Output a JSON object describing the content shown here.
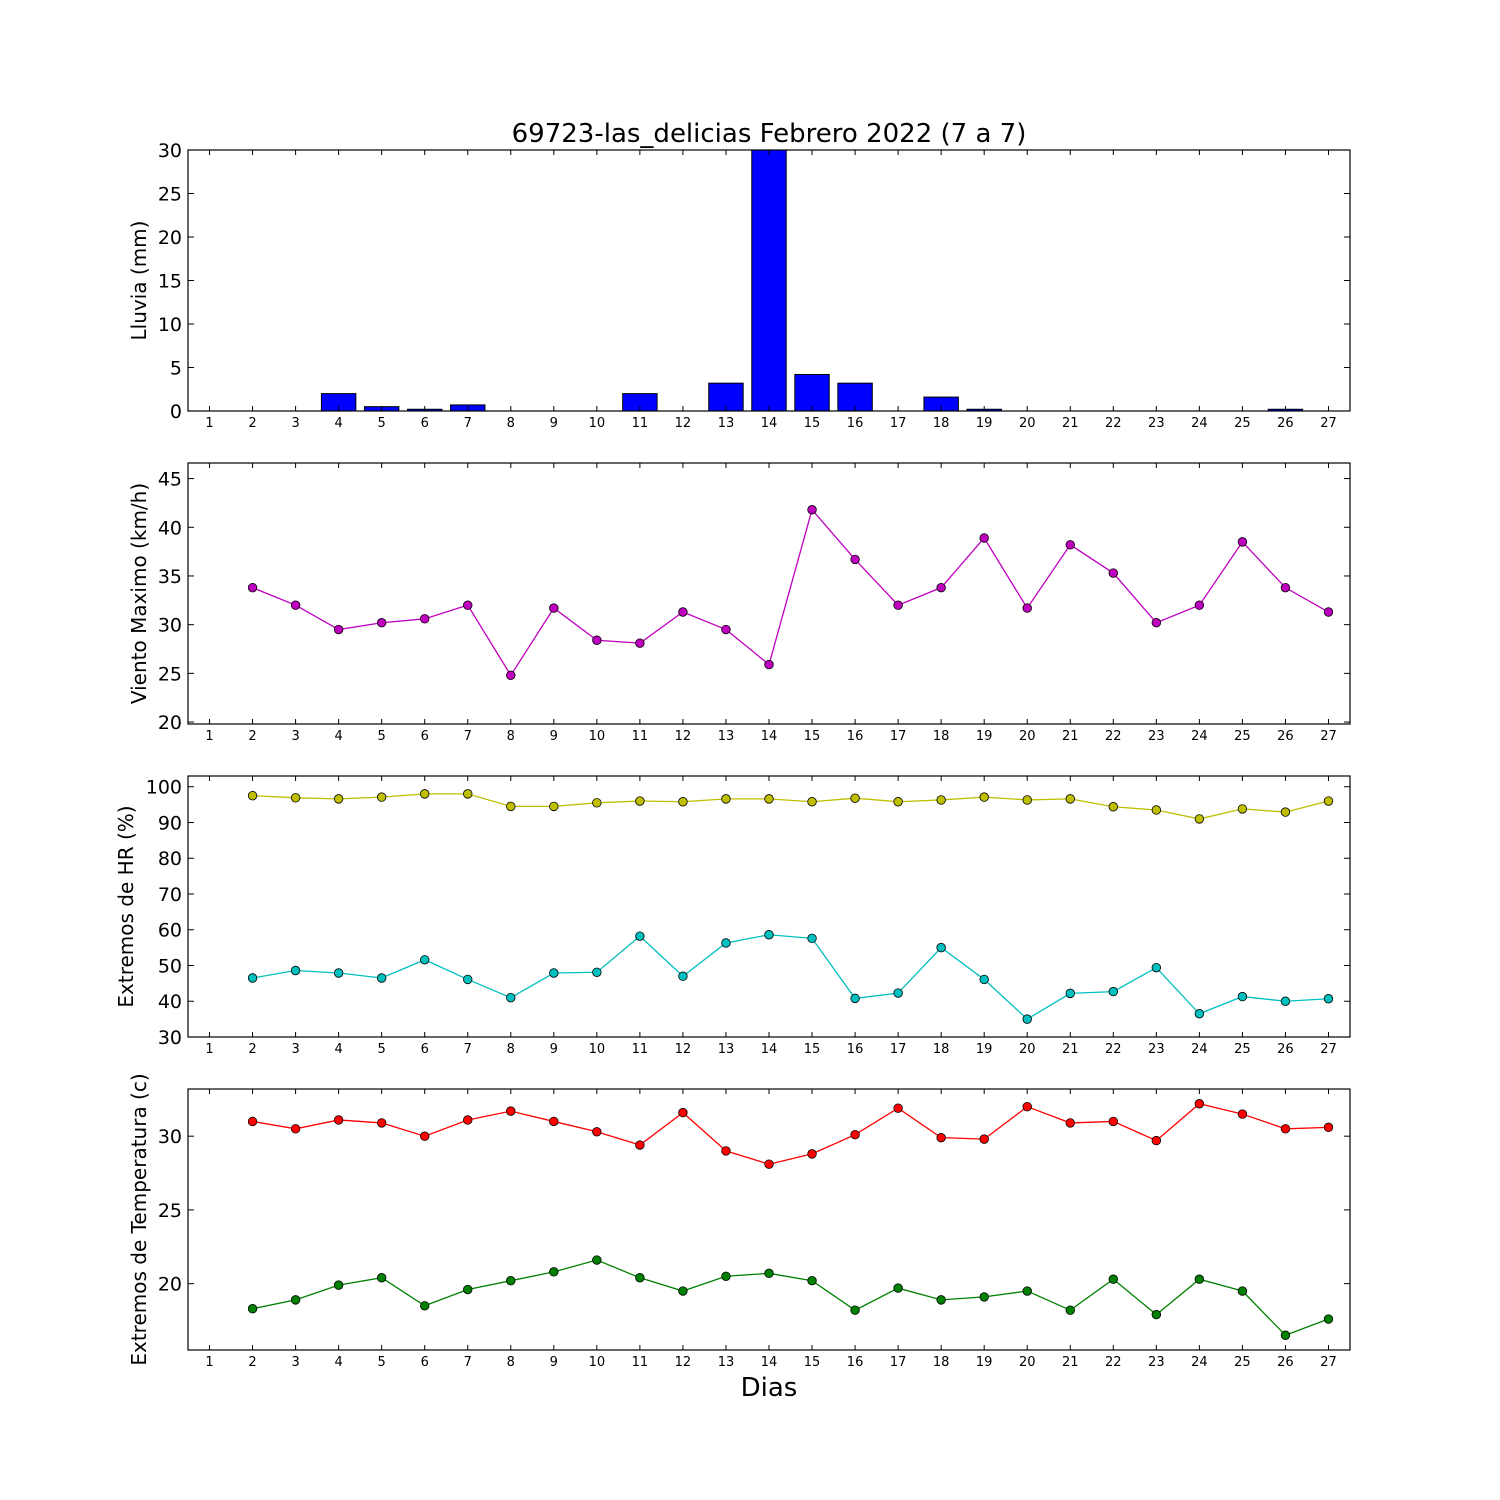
{
  "title": "69723-las_delicias Febrero 2022  (7 a 7)",
  "xlabel": "Dias",
  "chart_data": [
    {
      "type": "bar",
      "ylabel": "Lluvia (mm)",
      "ylim": [
        0,
        30
      ],
      "yticks": [
        0,
        5,
        10,
        15,
        20,
        25,
        30
      ],
      "xlim": [
        0.5,
        27.5
      ],
      "xticks": [
        1,
        2,
        3,
        4,
        5,
        6,
        7,
        8,
        9,
        10,
        11,
        12,
        13,
        14,
        15,
        16,
        17,
        18,
        19,
        20,
        21,
        22,
        23,
        24,
        25,
        26,
        27
      ],
      "color": "#0000ff",
      "x": [
        2,
        3,
        4,
        5,
        6,
        7,
        8,
        9,
        10,
        11,
        12,
        13,
        14,
        15,
        16,
        17,
        18,
        19,
        20,
        21,
        22,
        23,
        24,
        25,
        26
      ],
      "values": [
        0,
        0,
        2.0,
        0.5,
        0.2,
        0.7,
        0,
        0,
        0,
        2.0,
        0,
        3.2,
        30,
        4.2,
        3.2,
        0,
        1.6,
        0.2,
        0,
        0,
        0,
        0,
        0,
        0,
        0.2
      ]
    },
    {
      "type": "line",
      "ylabel": "Viento Maximo (km/h)",
      "ylim": [
        19.8,
        46.6
      ],
      "yticks": [
        20,
        25,
        30,
        35,
        40,
        45
      ],
      "xlim": [
        0.5,
        27.5
      ],
      "xticks": [
        1,
        2,
        3,
        4,
        5,
        6,
        7,
        8,
        9,
        10,
        11,
        12,
        13,
        14,
        15,
        16,
        17,
        18,
        19,
        20,
        21,
        22,
        23,
        24,
        25,
        26,
        27
      ],
      "x": [
        2,
        3,
        4,
        5,
        6,
        7,
        8,
        9,
        10,
        11,
        12,
        13,
        14,
        15,
        16,
        17,
        18,
        19,
        20,
        21,
        22,
        23,
        24,
        25,
        26,
        27
      ],
      "series": [
        {
          "color": "#bf00bf",
          "values": [
            33.8,
            32.0,
            29.5,
            30.2,
            30.6,
            32.0,
            24.8,
            31.7,
            28.4,
            28.1,
            31.3,
            29.5,
            25.9,
            41.8,
            36.7,
            32.0,
            33.8,
            38.9,
            31.7,
            38.2,
            35.3,
            30.2,
            32.0,
            38.5,
            33.8,
            31.3
          ]
        }
      ]
    },
    {
      "type": "line",
      "ylabel": "Extremos de HR (%)",
      "ylim": [
        30,
        103
      ],
      "yticks": [
        30,
        40,
        50,
        60,
        70,
        80,
        90,
        100
      ],
      "xlim": [
        0.5,
        27.5
      ],
      "xticks": [
        1,
        2,
        3,
        4,
        5,
        6,
        7,
        8,
        9,
        10,
        11,
        12,
        13,
        14,
        15,
        16,
        17,
        18,
        19,
        20,
        21,
        22,
        23,
        24,
        25,
        26,
        27
      ],
      "x": [
        2,
        3,
        4,
        5,
        6,
        7,
        8,
        9,
        10,
        11,
        12,
        13,
        14,
        15,
        16,
        17,
        18,
        19,
        20,
        21,
        22,
        23,
        24,
        25,
        26,
        27
      ],
      "series": [
        {
          "color": "#bfbf00",
          "values": [
            97.5,
            96.9,
            96.6,
            97.1,
            98.0,
            98.0,
            94.5,
            94.5,
            95.5,
            96.0,
            95.8,
            96.6,
            96.6,
            95.8,
            96.8,
            95.8,
            96.3,
            97.1,
            96.3,
            96.6,
            94.4,
            93.5,
            91.0,
            93.8,
            92.9,
            96.0
          ]
        },
        {
          "color": "#00bfbf",
          "values": [
            46.5,
            48.6,
            47.9,
            46.5,
            51.6,
            46.1,
            41.0,
            47.9,
            48.1,
            58.2,
            47.0,
            56.3,
            58.6,
            57.6,
            40.8,
            42.3,
            55.0,
            46.1,
            35.0,
            42.2,
            42.7,
            49.4,
            36.5,
            41.3,
            40.0,
            40.7
          ]
        }
      ]
    },
    {
      "type": "line",
      "ylabel": "Extremos de Temperatura (c)",
      "ylim": [
        15.5,
        33.2
      ],
      "yticks": [
        20,
        25,
        30
      ],
      "xlim": [
        0.5,
        27.5
      ],
      "xticks": [
        1,
        2,
        3,
        4,
        5,
        6,
        7,
        8,
        9,
        10,
        11,
        12,
        13,
        14,
        15,
        16,
        17,
        18,
        19,
        20,
        21,
        22,
        23,
        24,
        25,
        26,
        27
      ],
      "x": [
        2,
        3,
        4,
        5,
        6,
        7,
        8,
        9,
        10,
        11,
        12,
        13,
        14,
        15,
        16,
        17,
        18,
        19,
        20,
        21,
        22,
        23,
        24,
        25,
        26,
        27
      ],
      "series": [
        {
          "color": "#ff0000",
          "values": [
            31.0,
            30.5,
            31.1,
            30.9,
            30.0,
            31.1,
            31.7,
            31.0,
            30.3,
            29.4,
            31.6,
            29.0,
            28.1,
            28.8,
            30.1,
            31.9,
            29.9,
            29.8,
            32.0,
            30.9,
            31.0,
            29.7,
            32.2,
            31.5,
            30.5,
            30.6
          ]
        },
        {
          "color": "#008000",
          "values": [
            18.3,
            18.9,
            19.9,
            20.4,
            18.5,
            19.6,
            20.2,
            20.8,
            21.6,
            20.4,
            19.5,
            20.5,
            20.7,
            20.2,
            18.2,
            19.7,
            18.9,
            19.1,
            19.5,
            18.2,
            20.3,
            17.9,
            20.3,
            19.5,
            16.5,
            17.6
          ]
        }
      ]
    }
  ]
}
